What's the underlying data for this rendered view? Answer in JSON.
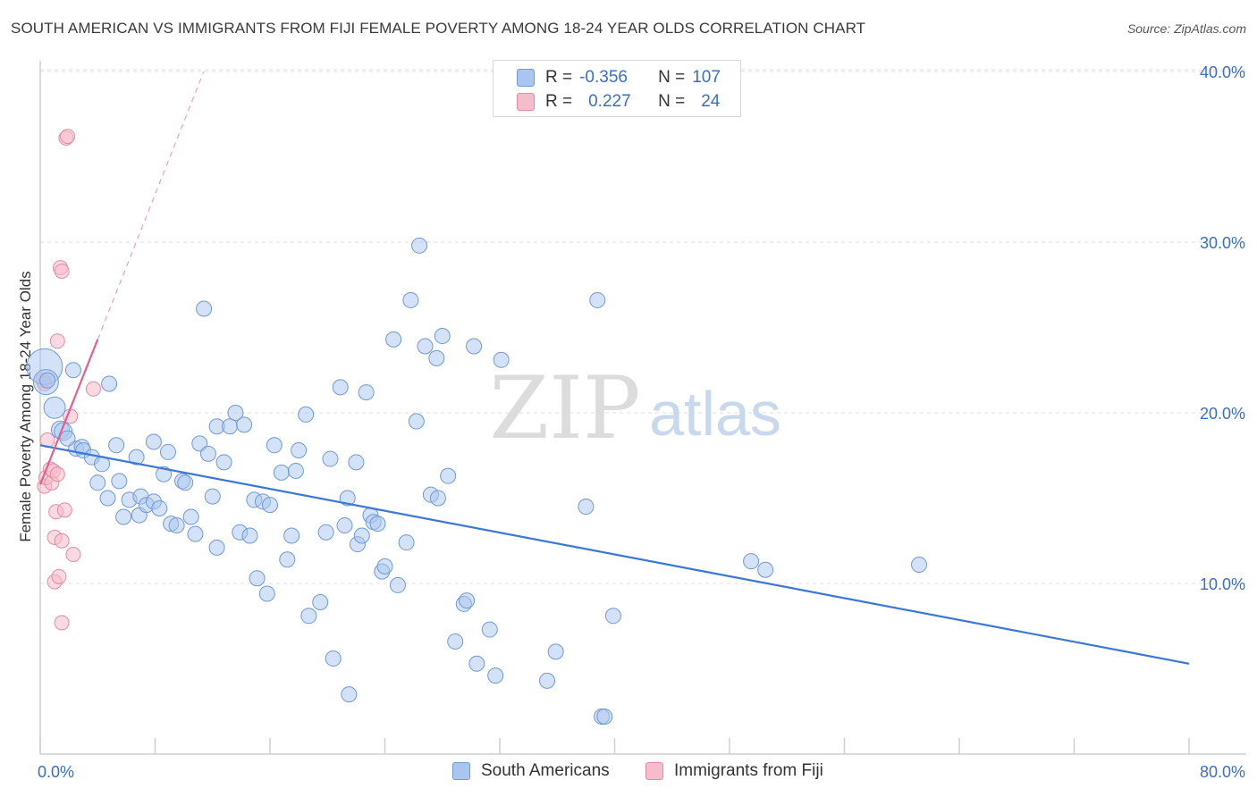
{
  "header": {
    "title": "SOUTH AMERICAN VS IMMIGRANTS FROM FIJI FEMALE POVERTY AMONG 18-24 YEAR OLDS CORRELATION CHART",
    "source": "Source: ZipAtlas.com"
  },
  "watermark": {
    "zip": "ZIP",
    "atlas": "atlas"
  },
  "legend": {
    "rows": [
      {
        "r_label": "R =",
        "r_value": "-0.356",
        "n_label": "N =",
        "n_value": "107",
        "color": "#a9c6ef",
        "border": "#6f9ad6"
      },
      {
        "r_label": "R =",
        "r_value": "0.227",
        "n_label": "N =",
        "n_value": "24",
        "color": "#f6bccb",
        "border": "#e48aa5"
      }
    ]
  },
  "bottom_legend": {
    "items": [
      {
        "label": "South Americans",
        "color": "#a9c6ef",
        "border": "#6f9ad6"
      },
      {
        "label": "Immigrants from Fiji",
        "color": "#f6bccb",
        "border": "#e48aa5"
      }
    ]
  },
  "chart_data": {
    "type": "scatter",
    "title": "SOUTH AMERICAN VS IMMIGRANTS FROM FIJI FEMALE POVERTY AMONG 18-24 YEAR OLDS CORRELATION CHART",
    "xlabel": "",
    "ylabel": "Female Poverty Among 18-24 Year Olds",
    "xlim": [
      0,
      80
    ],
    "ylim": [
      0,
      40
    ],
    "x_tick_labels": [
      "0.0%",
      "80.0%"
    ],
    "y_ticks": [
      10,
      20,
      30,
      40
    ],
    "y_tick_labels": [
      "10.0%",
      "20.0%",
      "30.0%",
      "40.0%"
    ],
    "grid": true,
    "legend_position": "top-center",
    "colors": {
      "south_american": "#3a78d6",
      "fiji": "#e06090"
    },
    "series": [
      {
        "name": "South Americans",
        "trend": {
          "x": [
            0,
            80
          ],
          "y": [
            18.1,
            5.3
          ]
        },
        "points": [
          [
            0.3,
            22.7
          ],
          [
            0.4,
            21.8
          ],
          [
            1.0,
            20.3
          ],
          [
            1.4,
            19.0
          ],
          [
            1.6,
            18.9
          ],
          [
            2.3,
            22.5
          ],
          [
            2.5,
            17.9
          ],
          [
            2.9,
            18.0
          ],
          [
            3.0,
            17.8
          ],
          [
            3.6,
            17.4
          ],
          [
            4.3,
            17.0
          ],
          [
            4.8,
            21.7
          ],
          [
            4.0,
            15.9
          ],
          [
            4.7,
            15.0
          ],
          [
            5.3,
            18.1
          ],
          [
            5.5,
            16.0
          ],
          [
            5.8,
            13.9
          ],
          [
            6.2,
            14.9
          ],
          [
            6.7,
            17.4
          ],
          [
            6.9,
            14.0
          ],
          [
            7.0,
            15.1
          ],
          [
            7.4,
            14.6
          ],
          [
            7.9,
            18.3
          ],
          [
            7.9,
            14.8
          ],
          [
            8.3,
            14.4
          ],
          [
            8.6,
            16.4
          ],
          [
            8.9,
            17.7
          ],
          [
            9.1,
            13.5
          ],
          [
            9.5,
            13.4
          ],
          [
            9.9,
            16.0
          ],
          [
            10.1,
            15.9
          ],
          [
            10.5,
            13.9
          ],
          [
            10.8,
            12.9
          ],
          [
            11.1,
            18.2
          ],
          [
            11.4,
            26.1
          ],
          [
            11.7,
            17.6
          ],
          [
            12.0,
            15.1
          ],
          [
            12.3,
            19.2
          ],
          [
            12.3,
            12.1
          ],
          [
            12.8,
            17.1
          ],
          [
            13.2,
            19.2
          ],
          [
            13.6,
            20.0
          ],
          [
            14.2,
            19.3
          ],
          [
            13.9,
            13.0
          ],
          [
            14.6,
            12.8
          ],
          [
            14.9,
            14.9
          ],
          [
            15.1,
            10.3
          ],
          [
            15.5,
            14.8
          ],
          [
            15.8,
            9.4
          ],
          [
            16.0,
            14.6
          ],
          [
            16.3,
            18.1
          ],
          [
            16.8,
            16.5
          ],
          [
            17.2,
            11.4
          ],
          [
            17.5,
            12.8
          ],
          [
            17.8,
            16.6
          ],
          [
            18.0,
            17.8
          ],
          [
            18.5,
            19.9
          ],
          [
            18.7,
            8.1
          ],
          [
            19.5,
            8.9
          ],
          [
            19.9,
            13.0
          ],
          [
            20.2,
            17.3
          ],
          [
            20.4,
            5.6
          ],
          [
            20.9,
            21.5
          ],
          [
            21.2,
            13.4
          ],
          [
            21.4,
            15.0
          ],
          [
            21.5,
            3.5
          ],
          [
            22.0,
            17.1
          ],
          [
            22.1,
            12.3
          ],
          [
            22.4,
            12.8
          ],
          [
            22.7,
            21.2
          ],
          [
            23.0,
            14.0
          ],
          [
            23.2,
            13.6
          ],
          [
            23.5,
            13.5
          ],
          [
            23.8,
            10.7
          ],
          [
            24.0,
            11.0
          ],
          [
            24.6,
            24.3
          ],
          [
            24.9,
            9.9
          ],
          [
            25.5,
            12.4
          ],
          [
            25.8,
            26.6
          ],
          [
            26.2,
            19.5
          ],
          [
            26.4,
            29.8
          ],
          [
            26.8,
            23.9
          ],
          [
            27.2,
            15.2
          ],
          [
            27.6,
            23.2
          ],
          [
            27.7,
            15.0
          ],
          [
            28.0,
            24.5
          ],
          [
            28.4,
            16.3
          ],
          [
            28.9,
            6.6
          ],
          [
            29.5,
            8.8
          ],
          [
            29.7,
            9.0
          ],
          [
            30.4,
            5.3
          ],
          [
            30.2,
            23.9
          ],
          [
            31.3,
            7.3
          ],
          [
            31.7,
            4.6
          ],
          [
            32.1,
            23.1
          ],
          [
            35.3,
            4.3
          ],
          [
            35.9,
            6.0
          ],
          [
            38.0,
            14.5
          ],
          [
            38.8,
            26.6
          ],
          [
            39.1,
            2.2
          ],
          [
            39.3,
            2.2
          ],
          [
            39.9,
            8.1
          ],
          [
            49.5,
            11.3
          ],
          [
            50.5,
            10.8
          ],
          [
            61.2,
            11.1
          ],
          [
            0.5,
            21.9
          ],
          [
            1.9,
            18.5
          ]
        ]
      },
      {
        "name": "Immigrants from Fiji",
        "trend": {
          "x": [
            0,
            4
          ],
          "y": [
            15.8,
            24.3
          ]
        },
        "points": [
          [
            0.2,
            21.9
          ],
          [
            0.3,
            21.7
          ],
          [
            0.3,
            15.7
          ],
          [
            0.4,
            16.2
          ],
          [
            0.5,
            18.4
          ],
          [
            0.7,
            16.7
          ],
          [
            0.8,
            15.9
          ],
          [
            0.9,
            16.6
          ],
          [
            1.0,
            10.1
          ],
          [
            1.0,
            12.7
          ],
          [
            1.1,
            14.2
          ],
          [
            1.2,
            16.4
          ],
          [
            1.2,
            24.2
          ],
          [
            1.3,
            10.4
          ],
          [
            1.4,
            28.5
          ],
          [
            1.5,
            28.3
          ],
          [
            1.5,
            12.5
          ],
          [
            1.5,
            7.7
          ],
          [
            1.7,
            14.3
          ],
          [
            1.8,
            36.1
          ],
          [
            1.9,
            36.2
          ],
          [
            2.1,
            19.8
          ],
          [
            2.3,
            11.7
          ],
          [
            3.7,
            21.4
          ]
        ]
      }
    ]
  }
}
